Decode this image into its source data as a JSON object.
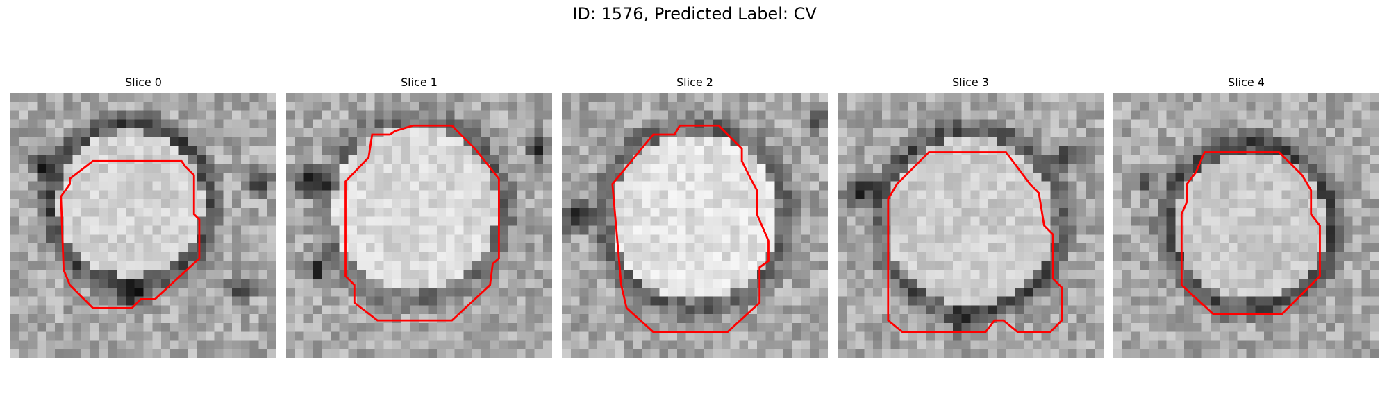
{
  "figure": {
    "title": "ID: 1576, Predicted Label: CV"
  },
  "slices": [
    {
      "label": "Slice 0"
    },
    {
      "label": "Slice 1"
    },
    {
      "label": "Slice 2"
    },
    {
      "label": "Slice 3"
    },
    {
      "label": "Slice 4"
    }
  ],
  "colors": {
    "contour": "#ff0000",
    "background": "#ffffff"
  }
}
